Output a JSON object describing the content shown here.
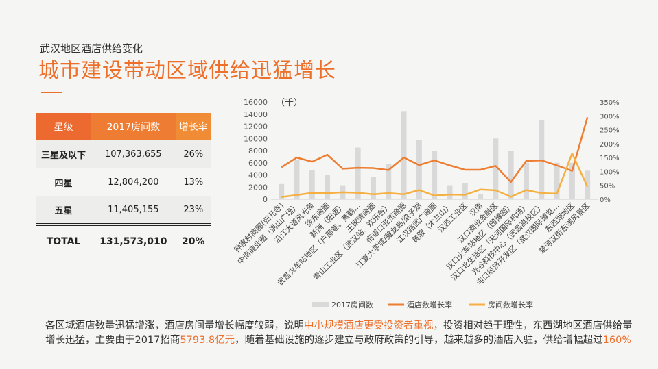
{
  "header": {
    "subtitle": "武汉地区酒店供给变化",
    "title": "城市建设带动区域供给迅猛增长"
  },
  "table": {
    "headers": [
      "星级",
      "2017房间数",
      "增长率"
    ],
    "rows": [
      [
        "三星及以下",
        "107,363,655",
        "26%"
      ],
      [
        "四星",
        "12,804,200",
        "13%"
      ],
      [
        "五星",
        "11,405,155",
        "23%"
      ]
    ],
    "total": [
      "TOTAL",
      "131,573,010",
      "20%"
    ]
  },
  "body": {
    "p1": "各区域酒店数量迅猛增涨，酒店房间量增长幅度较弱，说明",
    "h1": "中小规模酒店更受投资者重视",
    "p2": "，投资相对趋于理性，东西湖地区酒店供给量增长迅猛，主要由于2017招商",
    "h2": "5793.8亿元",
    "p3": "，随着基础设施的逐步建立与政府政策的引导，越来越多的酒店入驻，供给增幅超过",
    "h3": "160%"
  },
  "chart_data": {
    "type": "bar+line",
    "unit_label": "（千）",
    "categories": [
      "钟家村商圈(归元寺)",
      "中南商业圈（洪山广场）",
      "沿江大道风光带",
      "徐东商圈",
      "新洲（阳逻）",
      "武昌火车站地区（户部巷、黄鹤…",
      "王家湾商圈",
      "青山工业区（武汉站、欢乐谷）",
      "街道口亚贸商圈",
      "江夏大学城/藏龙岛/梁子湖",
      "江汉路武广商圈",
      "黄陂（木兰山）",
      "汉西工业区",
      "汉南",
      "汉口商业金融区",
      "汉口火车站地区（园博园）",
      "汉口北生活区（天河国际机场）",
      "光谷科技中心（武昌高校区）",
      "沌口经济开发区（武汉国际博览…",
      "东西湖地区",
      "楚河汉街东湖风景区"
    ],
    "series": [
      {
        "name": "2017房间数",
        "type": "bar",
        "axis": "left",
        "color": "#d9d9d9",
        "values": [
          2500,
          6500,
          4800,
          4000,
          2300,
          8500,
          3700,
          5800,
          14500,
          9700,
          8000,
          2300,
          2700,
          800,
          10000,
          8000,
          6000,
          13000,
          6000,
          6000,
          4700
        ]
      },
      {
        "name": "酒店数增长率",
        "type": "line",
        "axis": "right",
        "color": "#ed7d31",
        "values": [
          115,
          150,
          135,
          160,
          110,
          113,
          112,
          105,
          150,
          123,
          140,
          122,
          106,
          106,
          120,
          62,
          138,
          140,
          122,
          102,
          295
        ]
      },
      {
        "name": "房间数增长率",
        "type": "line",
        "axis": "right",
        "color": "#f5b041",
        "values": [
          8,
          15,
          23,
          22,
          25,
          23,
          18,
          22,
          18,
          33,
          13,
          17,
          16,
          35,
          32,
          9,
          33,
          22,
          20,
          165,
          45
        ]
      }
    ],
    "left_ticks": [
      "0",
      "2000",
      "4000",
      "6000",
      "8000",
      "10000",
      "12000",
      "14000",
      "16000"
    ],
    "right_ticks": [
      "0%",
      "50%",
      "100%",
      "150%",
      "200%",
      "250%",
      "300%",
      "350%"
    ],
    "ylim_left": [
      0,
      16000
    ],
    "ylim_right": [
      0,
      350
    ],
    "legend": "bottom"
  }
}
